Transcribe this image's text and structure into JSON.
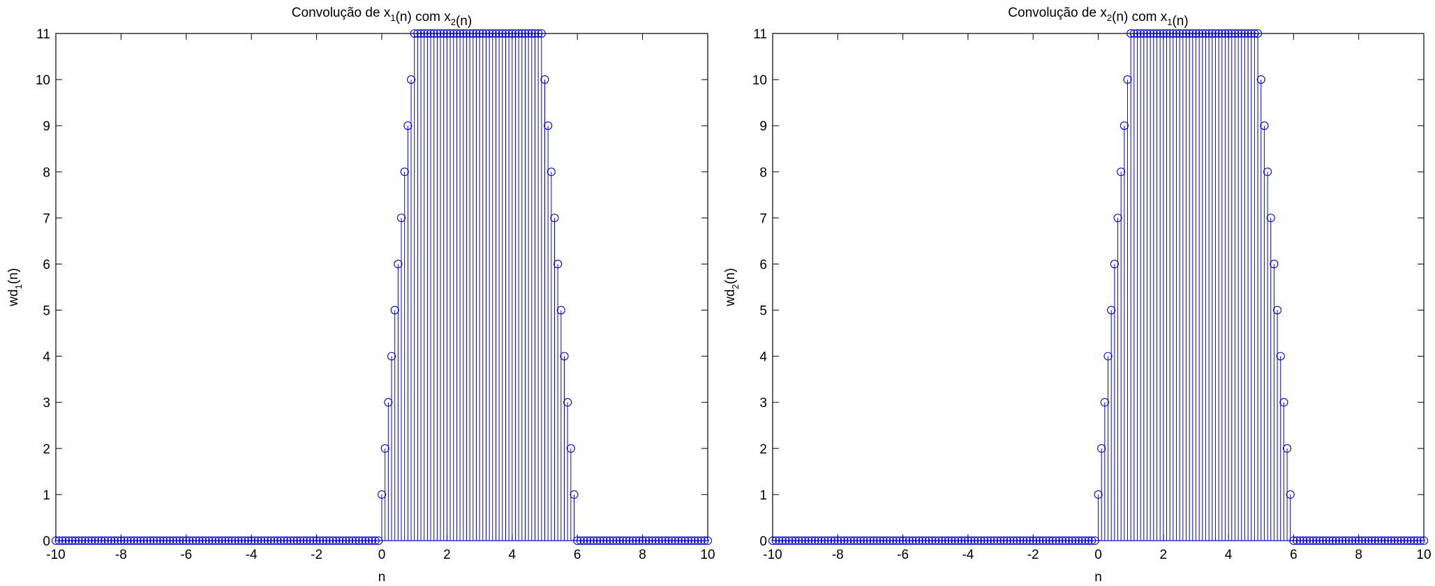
{
  "chart_data": [
    {
      "type": "stem",
      "title": {
        "prefix": "Convolução de x",
        "sub1": "1",
        "mid": "(n) com x",
        "sub2": "2",
        "suffix": "(n)"
      },
      "xlabel": "n",
      "ylabel": {
        "base": "wd",
        "sub": "1",
        "suffix": "(n)"
      },
      "xlim": [
        -10,
        10
      ],
      "ylim": [
        0,
        11
      ],
      "xticks": [
        -10,
        -8,
        -6,
        -4,
        -2,
        0,
        2,
        4,
        6,
        8,
        10
      ],
      "yticks": [
        0,
        1,
        2,
        3,
        4,
        5,
        6,
        7,
        8,
        9,
        10,
        11
      ],
      "xtick_labels": [
        "-10",
        "-8",
        "-6",
        "-4",
        "-2",
        "0",
        "2",
        "4",
        "6",
        "8",
        "10"
      ],
      "ytick_labels": [
        "0",
        "1",
        "2",
        "3",
        "4",
        "5",
        "6",
        "7",
        "8",
        "9",
        "10",
        "11"
      ],
      "color": "#0000ff",
      "x": {
        "start": -10,
        "stop": 10,
        "step": 0.1
      },
      "values": "0 for n<0; 10n+1 for n=0..0.9; 11 for n=1..4.9; 11-10(n-4.9) for n=5..5.9; 0 for n>5.9",
      "grid": false
    },
    {
      "type": "stem",
      "title": {
        "prefix": "Convolução de x",
        "sub1": "2",
        "mid": "(n) com x",
        "sub2": "1",
        "suffix": "(n)"
      },
      "xlabel": "n",
      "ylabel": {
        "base": "wd",
        "sub": "2",
        "suffix": "(n)"
      },
      "xlim": [
        -10,
        10
      ],
      "ylim": [
        0,
        11
      ],
      "xticks": [
        -10,
        -8,
        -6,
        -4,
        -2,
        0,
        2,
        4,
        6,
        8,
        10
      ],
      "yticks": [
        0,
        1,
        2,
        3,
        4,
        5,
        6,
        7,
        8,
        9,
        10,
        11
      ],
      "xtick_labels": [
        "-10",
        "-8",
        "-6",
        "-4",
        "-2",
        "0",
        "2",
        "4",
        "6",
        "8",
        "10"
      ],
      "ytick_labels": [
        "0",
        "1",
        "2",
        "3",
        "4",
        "5",
        "6",
        "7",
        "8",
        "9",
        "10",
        "11"
      ],
      "color": "#0000ff",
      "x": {
        "start": -10,
        "stop": 10,
        "step": 0.1
      },
      "values": "0 for n<0; 10n+1 for n=0..0.9; 11 for n=1..4.9; 11-10(n-4.9) for n=5..5.9; 0 for n>5.9",
      "grid": false
    }
  ]
}
